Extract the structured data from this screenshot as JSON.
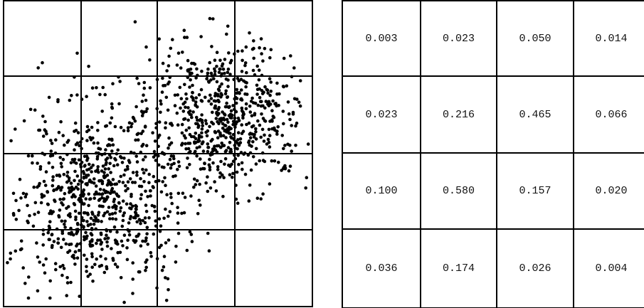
{
  "scatter": {
    "grid_rows": 4,
    "grid_cols": 4,
    "cluster_a": {
      "center": [
        0.72,
        0.37
      ],
      "spread": [
        0.13,
        0.12
      ],
      "count": 650
    },
    "cluster_b": {
      "center": [
        0.3,
        0.64
      ],
      "spread": [
        0.14,
        0.15
      ],
      "count": 800
    },
    "point_color": "#000000"
  },
  "probability_table": [
    [
      "0.003",
      "0.023",
      "0.050",
      "0.014"
    ],
    [
      "0.023",
      "0.216",
      "0.465",
      "0.066"
    ],
    [
      "0.100",
      "0.580",
      "0.157",
      "0.020"
    ],
    [
      "0.036",
      "0.174",
      "0.026",
      "0.004"
    ]
  ]
}
